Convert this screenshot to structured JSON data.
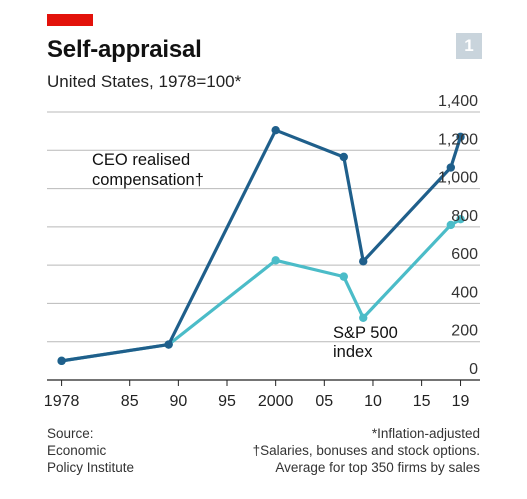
{
  "header": {
    "title": "Self-appraisal",
    "subtitle": "United States, 1978=100*",
    "badge": "1"
  },
  "colors": {
    "accent_red": "#e3120b",
    "ceo_line": "#1f5f8b",
    "sp500_line": "#4bbcc8",
    "gridline": "#b9b9b9",
    "badge_bg": "#c9d4dc"
  },
  "chart_data": {
    "type": "line",
    "title": "Self-appraisal",
    "subtitle": "United States, 1978=100*",
    "xlabel": "",
    "ylabel": "",
    "xlim": [
      1976.5,
      2021
    ],
    "ylim": [
      0,
      1400
    ],
    "x_ticks": [
      1978,
      1985,
      1990,
      1995,
      2000,
      2005,
      2010,
      2015,
      2019
    ],
    "x_tick_labels": [
      "1978",
      "85",
      "90",
      "95",
      "2000",
      "05",
      "10",
      "15",
      "19"
    ],
    "y_ticks": [
      0,
      200,
      400,
      600,
      800,
      1000,
      1200,
      1400
    ],
    "y_tick_labels": [
      "0",
      "200",
      "400",
      "600",
      "800",
      "1,000",
      "1,200",
      "1,400"
    ],
    "y_axis_side": "right",
    "grid": true,
    "series": [
      {
        "name": "CEO realised compensation†",
        "color": "#1f5f8b",
        "points": [
          [
            1978,
            100
          ],
          [
            1989,
            185
          ],
          [
            2000,
            1305
          ],
          [
            2007,
            1165
          ],
          [
            2009,
            620
          ],
          [
            2018,
            1110
          ],
          [
            2019,
            1270
          ]
        ]
      },
      {
        "name": "S&P 500 index",
        "color": "#4bbcc8",
        "points": [
          [
            1978,
            100
          ],
          [
            1989,
            185
          ],
          [
            2000,
            625
          ],
          [
            2007,
            540
          ],
          [
            2009,
            325
          ],
          [
            2018,
            810
          ],
          [
            2019,
            840
          ]
        ]
      }
    ]
  },
  "footer": {
    "source_lines": [
      "Source:",
      "Economic",
      "Policy Institute"
    ],
    "notes_lines": [
      "*Inflation-adjusted",
      "†Salaries, bonuses and stock options.",
      "Average for top 350 firms by sales"
    ]
  }
}
